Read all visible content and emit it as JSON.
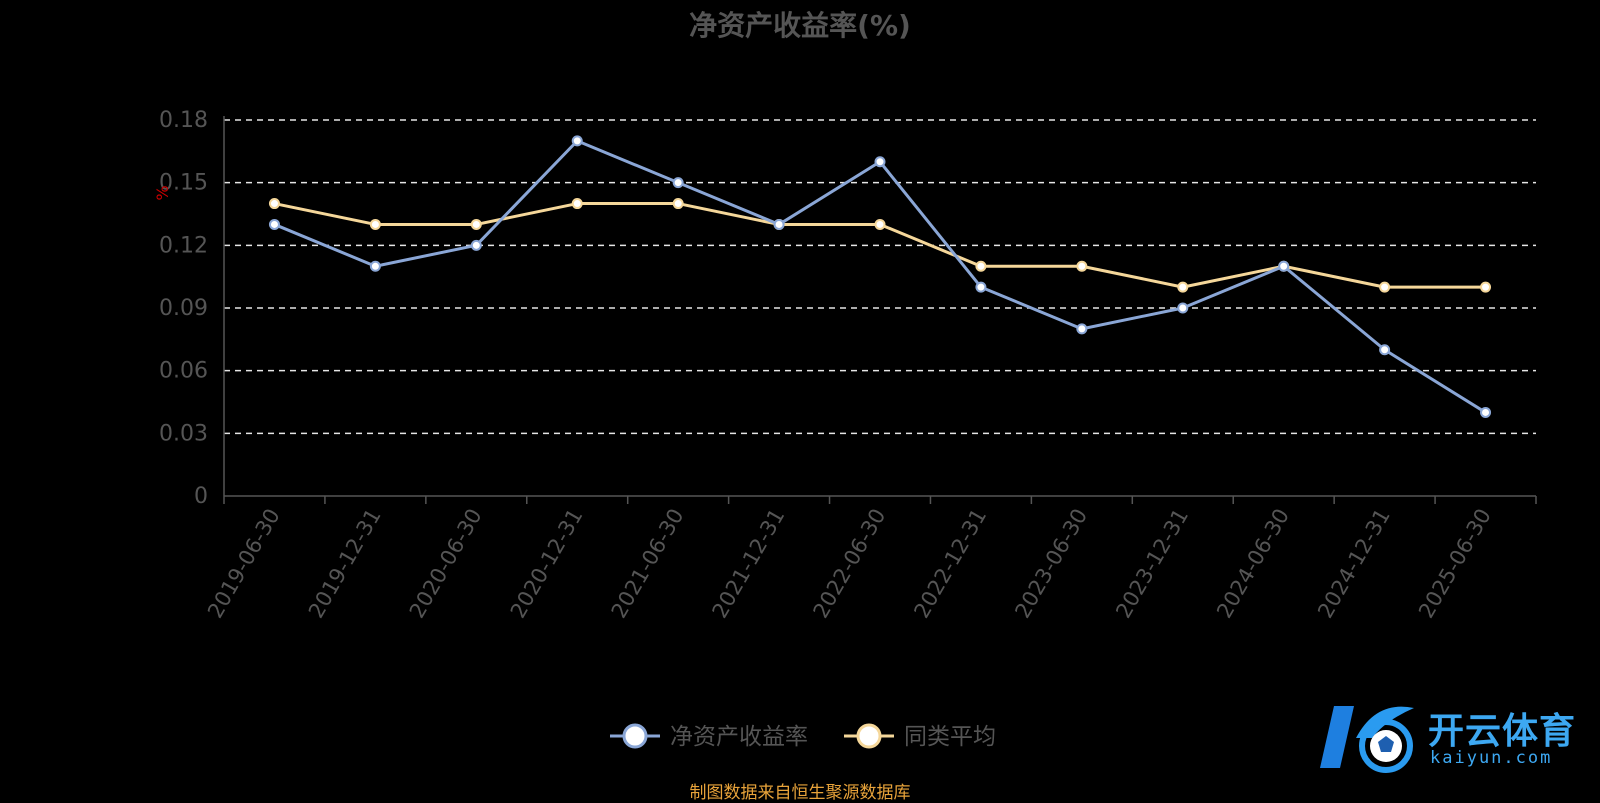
{
  "chart_data": {
    "type": "line",
    "title": "净资产收益率(%)",
    "ylabel": "%",
    "x": [
      "2019-06-30",
      "2019-12-31",
      "2020-06-30",
      "2020-12-31",
      "2021-06-30",
      "2021-12-31",
      "2022-06-30",
      "2022-12-31",
      "2023-06-30",
      "2023-12-31",
      "2024-06-30",
      "2024-12-31",
      "2025-06-30"
    ],
    "yticks": [
      "0",
      "0.03",
      "0.06",
      "0.09",
      "0.12",
      "0.15",
      "0.18"
    ],
    "ylim": [
      0,
      0.18
    ],
    "grid": true,
    "legend_position": "bottom",
    "series": [
      {
        "name": "净资产收益率",
        "color": "#8AA6D6",
        "values": [
          0.13,
          0.11,
          0.12,
          0.17,
          0.15,
          0.13,
          0.16,
          0.1,
          0.08,
          0.09,
          0.11,
          0.07,
          0.04
        ]
      },
      {
        "name": "同类平均",
        "color": "#F5D79A",
        "values": [
          0.14,
          0.13,
          0.13,
          0.14,
          0.14,
          0.13,
          0.13,
          0.11,
          0.11,
          0.1,
          0.11,
          0.1,
          0.1
        ]
      }
    ]
  },
  "source_note": "制图数据来自恒生聚源数据库",
  "watermark": {
    "name": "开云体育",
    "domain": "kaiyun.com"
  }
}
